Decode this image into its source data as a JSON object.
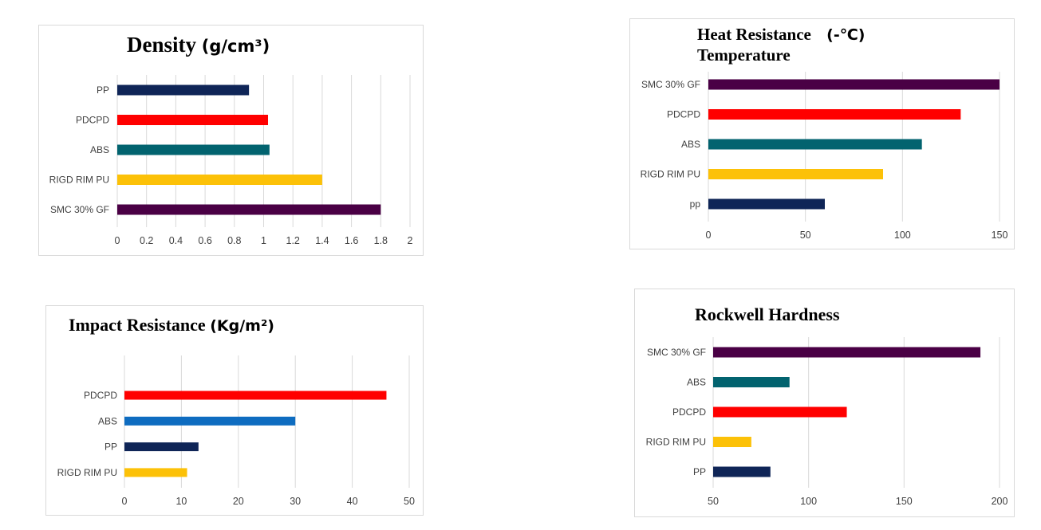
{
  "colors": {
    "pp": "#0f2557",
    "pdcpd": "#ff0000",
    "abs": "#02636f",
    "abs_impact": "#0e6cc0",
    "rigd_rim_pu": "#fcc108",
    "smc": "#4a0045",
    "grid": "#d9d9d9",
    "text": "#404040"
  },
  "chart_data": [
    {
      "id": "density",
      "type": "bar",
      "orientation": "horizontal",
      "title": "Density",
      "title_unit": "(g/cm³)",
      "categories": [
        "PP",
        "PDCPD",
        "ABS",
        "RIGD RIM PU",
        "SMC 30% GF"
      ],
      "values": [
        0.9,
        1.03,
        1.04,
        1.4,
        1.8
      ],
      "color_keys": [
        "pp",
        "pdcpd",
        "abs",
        "rigd_rim_pu",
        "smc"
      ],
      "xlim": [
        0,
        2
      ],
      "ticks": [
        "0",
        "0.2",
        "0.4",
        "0.6",
        "0.8",
        "1",
        "1.2",
        "1.4",
        "1.6",
        "1.8",
        "2"
      ],
      "grid": true,
      "legend": "none"
    },
    {
      "id": "heat",
      "type": "bar",
      "orientation": "horizontal",
      "title": "Heat Resistance",
      "title_line2": "Temperature",
      "title_unit": "(-℃)",
      "categories": [
        "SMC 30% GF",
        "PDCPD",
        "ABS",
        "RIGD RIM PU",
        "pp"
      ],
      "values": [
        150,
        130,
        110,
        90,
        60
      ],
      "color_keys": [
        "smc",
        "pdcpd",
        "abs",
        "rigd_rim_pu",
        "pp"
      ],
      "xlim": [
        0,
        150
      ],
      "ticks": [
        "0",
        "50",
        "100",
        "150"
      ],
      "grid": true,
      "legend": "none"
    },
    {
      "id": "impact",
      "type": "bar",
      "orientation": "horizontal",
      "title": "Impact Resistance",
      "title_unit": "(Kg/m²)",
      "categories": [
        "PDCPD",
        "ABS",
        "PP",
        "RIGD RIM PU"
      ],
      "values": [
        46,
        30,
        13,
        11
      ],
      "color_keys": [
        "pdcpd",
        "abs_impact",
        "pp",
        "rigd_rim_pu"
      ],
      "xlim": [
        0,
        50
      ],
      "ticks": [
        "0",
        "10",
        "20",
        "30",
        "40",
        "50"
      ],
      "grid": true,
      "legend": "none"
    },
    {
      "id": "rockwell",
      "type": "bar",
      "orientation": "horizontal",
      "title": "Rockwell Hardness",
      "categories": [
        "SMC 30% GF",
        "ABS",
        "PDCPD",
        "RIGD RIM PU",
        "PP"
      ],
      "values": [
        190,
        90,
        120,
        70,
        80
      ],
      "color_keys": [
        "smc",
        "abs",
        "pdcpd",
        "rigd_rim_pu",
        "pp"
      ],
      "xlim": [
        50,
        200
      ],
      "ticks": [
        "50",
        "100",
        "150",
        "200"
      ],
      "grid": true,
      "legend": "none"
    }
  ]
}
